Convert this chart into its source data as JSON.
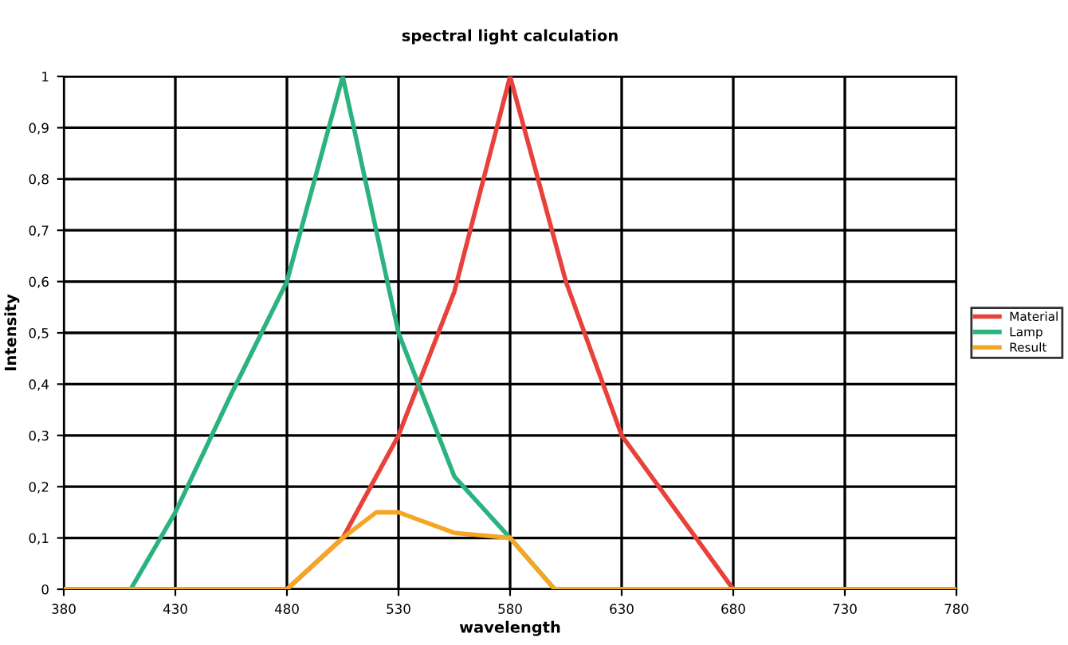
{
  "chart_data": {
    "type": "line",
    "title": "spectral light calculation",
    "xlabel": "wavelength",
    "ylabel": "Intensity",
    "xlim": [
      380,
      780
    ],
    "xticks": [
      380,
      430,
      480,
      530,
      580,
      630,
      680,
      730,
      780
    ],
    "ylim": [
      0,
      1
    ],
    "yticks": [
      0,
      {
        "value": 0.1,
        "label": "0,1"
      },
      {
        "value": 0.2,
        "label": "0,2"
      },
      {
        "value": 0.3,
        "label": "0,3"
      },
      {
        "value": 0.4,
        "label": "0,4"
      },
      {
        "value": 0.5,
        "label": "0,5"
      },
      {
        "value": 0.6,
        "label": "0,6"
      },
      {
        "value": 0.7,
        "label": "0,7"
      },
      {
        "value": 0.8,
        "label": "0,8"
      },
      {
        "value": 0.9,
        "label": "0,9"
      },
      1
    ],
    "grid": true,
    "legend": "right",
    "marker": "none",
    "line_style": "solid",
    "series": [
      {
        "name": "Material",
        "color": "#e8413a",
        "x": [
          380,
          480,
          505,
          530,
          555,
          580,
          605,
          630,
          655,
          680,
          780
        ],
        "values": [
          0,
          0,
          0.1,
          0.3,
          0.58,
          1,
          0.6,
          0.3,
          0.15,
          0,
          0
        ]
      },
      {
        "name": "Lamp",
        "color": "#2bb37f",
        "x": [
          380,
          410,
          430,
          455,
          480,
          505,
          530,
          555,
          580,
          600,
          780
        ],
        "values": [
          0,
          0,
          0.15,
          0.38,
          0.6,
          1,
          0.5,
          0.22,
          0.1,
          0,
          0
        ]
      },
      {
        "name": "Result",
        "color": "#f5a623",
        "x": [
          380,
          480,
          505,
          520,
          530,
          555,
          580,
          600,
          780
        ],
        "values": [
          0,
          0,
          0.1,
          0.15,
          0.15,
          0.11,
          0.1,
          0,
          0
        ]
      }
    ]
  }
}
